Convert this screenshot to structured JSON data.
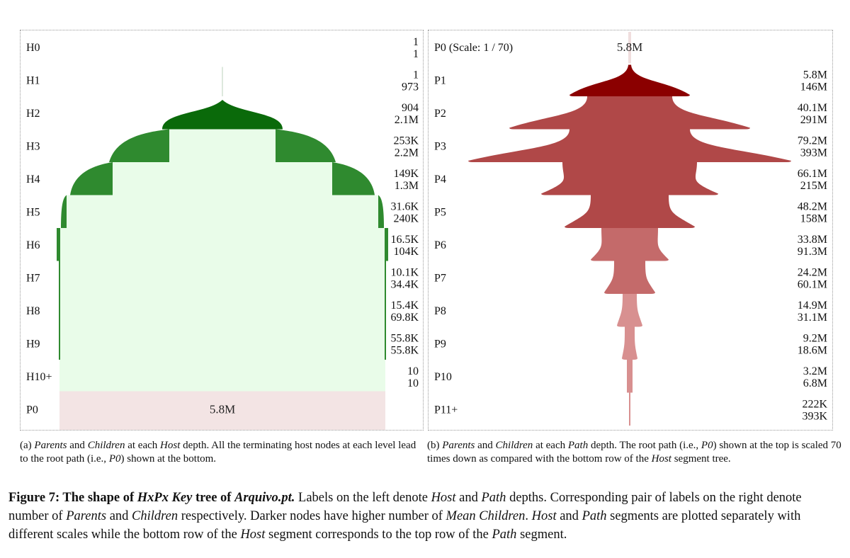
{
  "chart_data": [
    {
      "type": "area",
      "panel": "a",
      "rows": [
        "H0",
        "H1",
        "H2",
        "H3",
        "H4",
        "H5",
        "H6",
        "H7",
        "H8",
        "H9",
        "H10+",
        "P0"
      ],
      "parents": [
        "1",
        "1",
        "904",
        "253K",
        "149K",
        "31.6K",
        "16.5K",
        "10.1K",
        "15.4K",
        "55.8K",
        "10",
        ""
      ],
      "children": [
        "1",
        "973",
        "2.1M",
        "2.2M",
        "1.3M",
        "240K",
        "104K",
        "34.4K",
        "69.8K",
        "55.8K",
        "10",
        ""
      ],
      "root_label": "5.8M",
      "colors": {
        "dark": "#0a6a0a",
        "mid": "#2f8a2f",
        "light": "#e9fce9",
        "root": "#f3e4e4"
      }
    },
    {
      "type": "area",
      "panel": "b",
      "title": "P0 (Scale: 1 / 70)",
      "root_label": "5.8M",
      "rows": [
        "P0",
        "P1",
        "P2",
        "P3",
        "P4",
        "P5",
        "P6",
        "P7",
        "P8",
        "P9",
        "P10",
        "P11+"
      ],
      "parents": [
        "",
        "5.8M",
        "40.1M",
        "79.2M",
        "66.1M",
        "48.2M",
        "33.8M",
        "24.2M",
        "14.9M",
        "9.2M",
        "3.2M",
        "222K"
      ],
      "children": [
        "",
        "146M",
        "291M",
        "393M",
        "215M",
        "158M",
        "91.3M",
        "60.1M",
        "31.1M",
        "18.6M",
        "6.8M",
        "393K"
      ],
      "colors": {
        "darkest": "#8b0000",
        "dark": "#b04848",
        "mid": "#c46a6a",
        "light": "#d89090"
      }
    }
  ],
  "captions": {
    "a": [
      {
        "t": "(a) ",
        "i": false
      },
      {
        "t": "Parents",
        "i": true
      },
      {
        "t": " and ",
        "i": false
      },
      {
        "t": "Children",
        "i": true
      },
      {
        "t": " at each ",
        "i": false
      },
      {
        "t": "Host",
        "i": true
      },
      {
        "t": " depth. All the terminating host nodes at each level lead to the root path (i.e., ",
        "i": false
      },
      {
        "t": "P0",
        "i": true
      },
      {
        "t": ") shown at the bottom.",
        "i": false
      }
    ],
    "b": [
      {
        "t": "(b) ",
        "i": false
      },
      {
        "t": "Parents",
        "i": true
      },
      {
        "t": " and ",
        "i": false
      },
      {
        "t": "Children",
        "i": true
      },
      {
        "t": " at each ",
        "i": false
      },
      {
        "t": "Path",
        "i": true
      },
      {
        "t": " depth. The root path (i.e., ",
        "i": false
      },
      {
        "t": "P0",
        "i": true
      },
      {
        "t": ") shown at the top is scaled 70 times down as compared with the bottom row of the ",
        "i": false
      },
      {
        "t": "Host",
        "i": true
      },
      {
        "t": " segment tree.",
        "i": false
      }
    ],
    "main": [
      {
        "t": "Figure 7: The shape of ",
        "i": false,
        "b": true
      },
      {
        "t": "HxPx Key",
        "i": true,
        "b": true
      },
      {
        "t": " tree of ",
        "i": false,
        "b": true
      },
      {
        "t": "Arquivo.pt.",
        "i": true,
        "b": true
      },
      {
        "t": " Labels on the left denote ",
        "i": false
      },
      {
        "t": "Host",
        "i": true
      },
      {
        "t": " and ",
        "i": false
      },
      {
        "t": "Path",
        "i": true
      },
      {
        "t": " depths. Corresponding pair of labels on the right denote number of ",
        "i": false
      },
      {
        "t": "Parents",
        "i": true
      },
      {
        "t": " and ",
        "i": false
      },
      {
        "t": "Children",
        "i": true
      },
      {
        "t": " respectively. Darker nodes have higher number of ",
        "i": false
      },
      {
        "t": "Mean Children",
        "i": true
      },
      {
        "t": ". ",
        "i": false
      },
      {
        "t": "Host",
        "i": true
      },
      {
        "t": " and ",
        "i": false
      },
      {
        "t": "Path",
        "i": true
      },
      {
        "t": " segments are plotted separately with different scales while the bottom row of the ",
        "i": false
      },
      {
        "t": "Host",
        "i": true
      },
      {
        "t": " segment corresponds to the top row of the ",
        "i": false
      },
      {
        "t": "Path",
        "i": true
      },
      {
        "t": " segment.",
        "i": false
      }
    ]
  }
}
